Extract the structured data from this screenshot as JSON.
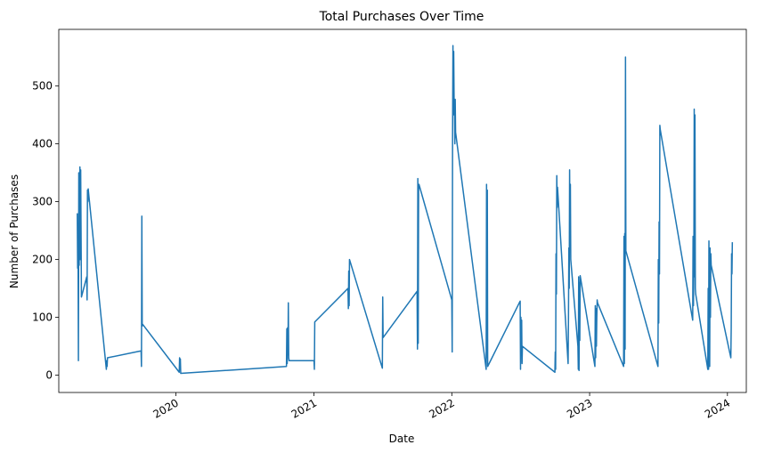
{
  "chart_data": {
    "type": "line",
    "title": "Total Purchases Over Time",
    "xlabel": "Date",
    "ylabel": "Number of Purchases",
    "x_ticks": [
      "2020",
      "2021",
      "2022",
      "2023",
      "2024"
    ],
    "y_ticks": [
      0,
      100,
      200,
      300,
      400,
      500
    ],
    "xlim": [
      "2019-02-25",
      "2024-02-20"
    ],
    "ylim": [
      -30,
      598
    ],
    "grid": false,
    "line_color": "#1f77b4",
    "series": [
      {
        "x": [
          "2019-04-15",
          "2019-04-16",
          "2019-04-17",
          "2019-04-18",
          "2019-04-19",
          "2019-04-20",
          "2019-04-21",
          "2019-04-22",
          "2019-04-23",
          "2019-04-24",
          "2019-04-25",
          "2019-04-26",
          "2019-05-10",
          "2019-05-11",
          "2019-05-12",
          "2019-05-13",
          "2019-05-14",
          "2019-05-15",
          "2019-07-01",
          "2019-07-02",
          "2019-07-03",
          "2019-07-04",
          "2019-10-01",
          "2019-10-02",
          "2019-10-03",
          "2019-10-04",
          "2019-10-05",
          "2020-01-10",
          "2020-01-11",
          "2020-01-12",
          "2020-01-13",
          "2020-01-14",
          "2020-10-20",
          "2020-10-21",
          "2020-10-22",
          "2020-10-23",
          "2020-10-24",
          "2020-10-25",
          "2020-10-26",
          "2020-10-27",
          "2021-01-01",
          "2021-01-02",
          "2021-01-03",
          "2021-04-01",
          "2021-04-02",
          "2021-04-03",
          "2021-04-04",
          "2021-04-05",
          "2021-07-01",
          "2021-07-02",
          "2021-07-03",
          "2021-10-01",
          "2021-10-02",
          "2021-10-03",
          "2021-10-04",
          "2021-10-05",
          "2021-10-06",
          "2022-01-01",
          "2022-01-02",
          "2022-01-03",
          "2022-01-04",
          "2022-01-05",
          "2022-01-06",
          "2022-01-07",
          "2022-01-08",
          "2022-01-09",
          "2022-01-10",
          "2022-01-11",
          "2022-04-01",
          "2022-04-02",
          "2022-04-03",
          "2022-04-04",
          "2022-04-05",
          "2022-04-06",
          "2022-07-01",
          "2022-07-02",
          "2022-07-03",
          "2022-07-04",
          "2022-07-05",
          "2022-07-06",
          "2022-07-07",
          "2022-10-01",
          "2022-10-02",
          "2022-10-03",
          "2022-10-04",
          "2022-10-05",
          "2022-10-06",
          "2022-10-07",
          "2022-10-08",
          "2022-11-05",
          "2022-11-06",
          "2022-11-07",
          "2022-11-08",
          "2022-11-09",
          "2022-11-10",
          "2022-11-11",
          "2022-11-12",
          "2022-12-01",
          "2022-12-02",
          "2022-12-03",
          "2022-12-04",
          "2022-12-05",
          "2022-12-06",
          "2022-12-07",
          "2023-01-15",
          "2023-01-16",
          "2023-01-17",
          "2023-01-18",
          "2023-01-19",
          "2023-01-20",
          "2023-01-21",
          "2023-01-22",
          "2023-04-01",
          "2023-04-02",
          "2023-04-03",
          "2023-04-04",
          "2023-04-05",
          "2023-04-06",
          "2023-04-07",
          "2023-07-01",
          "2023-07-02",
          "2023-07-03",
          "2023-07-04",
          "2023-07-05",
          "2023-07-06",
          "2023-07-07",
          "2023-10-01",
          "2023-10-02",
          "2023-10-03",
          "2023-10-04",
          "2023-10-05",
          "2023-10-06",
          "2023-10-07",
          "2023-10-08",
          "2023-10-09",
          "2023-11-10",
          "2023-11-11",
          "2023-11-12",
          "2023-11-13",
          "2023-11-14",
          "2023-11-15",
          "2023-11-16",
          "2023-11-17",
          "2023-11-18",
          "2023-11-19",
          "2024-01-10",
          "2024-01-11",
          "2024-01-12",
          "2024-01-13",
          "2024-01-14"
        ],
        "y": [
          280,
          185,
          240,
          25,
          350,
          190,
          300,
          360,
          200,
          355,
          250,
          135,
          170,
          130,
          320,
          300,
          322,
          315,
          10,
          25,
          15,
          30,
          42,
          15,
          275,
          85,
          88,
          5,
          30,
          10,
          28,
          3,
          15,
          80,
          20,
          82,
          35,
          125,
          30,
          25,
          25,
          10,
          92,
          150,
          115,
          180,
          120,
          200,
          12,
          135,
          65,
          145,
          45,
          340,
          55,
          320,
          330,
          130,
          40,
          410,
          570,
          450,
          560,
          480,
          470,
          400,
          477,
          420,
          15,
          10,
          330,
          30,
          320,
          15,
          128,
          10,
          100,
          50,
          95,
          20,
          50,
          5,
          40,
          10,
          210,
          140,
          345,
          290,
          325,
          20,
          100,
          220,
          150,
          355,
          240,
          330,
          200,
          50,
          10,
          170,
          8,
          160,
          60,
          172,
          15,
          120,
          30,
          115,
          50,
          100,
          130,
          125,
          15,
          240,
          20,
          245,
          45,
          550,
          215,
          15,
          200,
          90,
          265,
          175,
          432,
          425,
          95,
          240,
          120,
          180,
          460,
          170,
          450,
          150,
          140,
          10,
          150,
          10,
          232,
          80,
          15,
          220,
          100,
          210,
          190,
          30,
          80,
          210,
          175,
          230
        ]
      }
    ]
  }
}
